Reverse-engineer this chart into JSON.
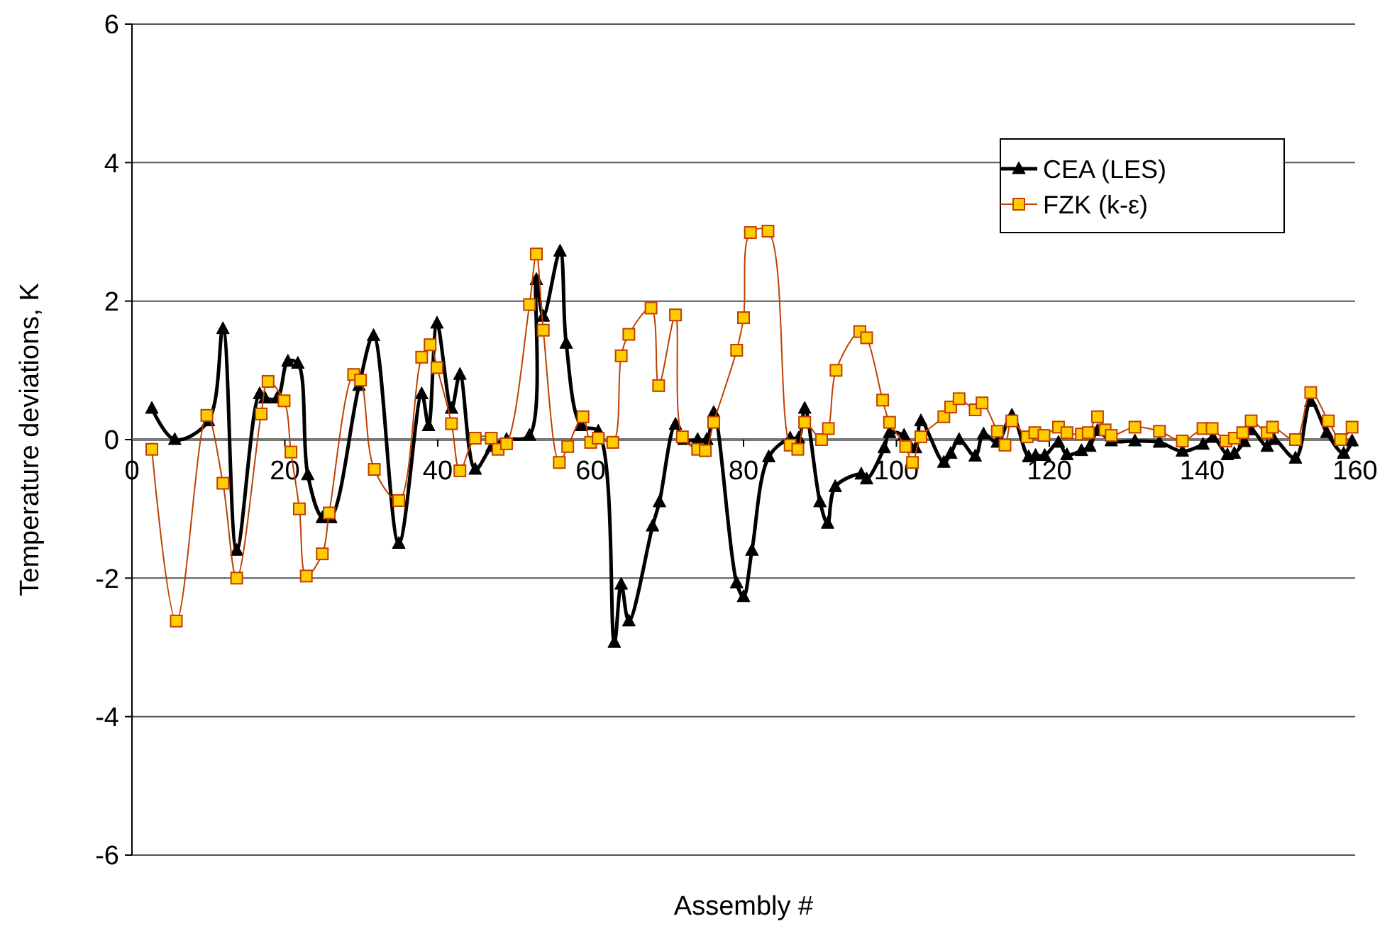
{
  "chart_data": {
    "type": "line",
    "xlabel": "Assembly #",
    "ylabel": "Temperature deviations, K",
    "xlim": [
      0,
      160
    ],
    "xticks": [
      0,
      20,
      40,
      60,
      80,
      100,
      120,
      140,
      160
    ],
    "ylim": [
      -6,
      6
    ],
    "yticks": [
      -6,
      -4,
      -2,
      0,
      2,
      4,
      6
    ],
    "grid": "y",
    "legend": "top right",
    "line_style": "solid",
    "series": [
      {
        "name": "CEA (LES)",
        "color": "#000000",
        "marker": "triangle",
        "x": [
          2.6,
          5.6,
          10,
          11.9,
          13.7,
          16.7,
          17.4,
          19,
          20.4,
          21.7,
          23,
          24.9,
          26,
          29.7,
          31.6,
          34.9,
          37.9,
          38.8,
          39.9,
          41.8,
          42.9,
          44.9,
          47.1,
          49,
          52,
          52.9,
          53.8,
          56,
          56.8,
          58.8,
          61,
          63.1,
          64,
          65,
          68.1,
          69,
          71.1,
          72.2,
          74,
          75.2,
          76.1,
          79.1,
          80,
          81.1,
          83.3,
          86.1,
          87.2,
          88,
          90,
          91,
          92,
          95.4,
          96.1,
          98.4,
          99.1,
          101,
          102.5,
          103.2,
          106.2,
          107.1,
          108.2,
          110.3,
          111.4,
          113.2,
          115.1,
          117.3,
          118.2,
          119.4,
          121.2,
          122.3,
          124.2,
          125.3,
          126.3,
          128.1,
          131.2,
          134.4,
          137.4,
          140.1,
          141.4,
          143.3,
          144.2,
          145.5,
          146.4,
          148.5,
          149.4,
          152.2,
          154.2,
          156.3,
          158.5,
          159.6
        ],
        "values": [
          0.45,
          0,
          0.27,
          1.6,
          -1.6,
          0.66,
          0.6,
          0.6,
          1.13,
          1.1,
          -0.51,
          -1.13,
          -1.13,
          0.78,
          1.5,
          -1.5,
          0.66,
          0.2,
          1.68,
          0.45,
          0.94,
          -0.43,
          -0.1,
          0,
          0.06,
          2.31,
          1.78,
          2.72,
          1.39,
          0.2,
          0.12,
          -2.93,
          -2.09,
          -2.62,
          -1.25,
          -0.9,
          0.22,
          0,
          0,
          0,
          0.39,
          -2.07,
          -2.27,
          -1.6,
          -0.25,
          0.02,
          0.02,
          0.45,
          -0.9,
          -1.21,
          -0.68,
          -0.5,
          -0.57,
          -0.12,
          0.1,
          0.06,
          -0.12,
          0.27,
          -0.33,
          -0.2,
          0,
          -0.24,
          0.08,
          -0.04,
          0.35,
          -0.25,
          -0.23,
          -0.23,
          -0.04,
          -0.22,
          -0.16,
          -0.1,
          0.13,
          -0.02,
          -0.02,
          -0.04,
          -0.17,
          -0.07,
          0.03,
          -0.22,
          -0.2,
          -0.03,
          0.14,
          -0.1,
          0,
          -0.27,
          0.55,
          0.1,
          -0.2,
          -0.02
        ]
      },
      {
        "name": "FZK (k-ε)",
        "color": "#c04000",
        "marker": "square",
        "x": [
          2.6,
          5.8,
          9.8,
          11.9,
          13.7,
          16.9,
          17.8,
          19.9,
          20.8,
          21.9,
          22.8,
          24.9,
          25.8,
          29,
          29.9,
          31.7,
          34.9,
          37.9,
          39,
          39.9,
          41.8,
          42.9,
          44.9,
          47,
          47.9,
          49,
          52,
          52.9,
          53.8,
          55.9,
          57,
          59,
          60,
          61,
          62.9,
          64,
          65,
          67.9,
          68.9,
          71.1,
          72,
          74,
          75,
          76.1,
          79.1,
          80,
          80.9,
          83.2,
          86.1,
          87.1,
          88,
          90.2,
          91.1,
          92.1,
          95.2,
          96.1,
          98.2,
          99.1,
          101.2,
          102.1,
          103.2,
          106.2,
          107.1,
          108.2,
          110.3,
          111.2,
          113.2,
          114.2,
          115.1,
          117.1,
          118.1,
          119.3,
          121.2,
          122.3,
          124.2,
          125.1,
          126.3,
          127.3,
          128.1,
          131.2,
          134.4,
          137.4,
          140.1,
          141.3,
          143.1,
          144.2,
          145.3,
          146.4,
          148.5,
          149.2,
          152.2,
          154.2,
          156.5,
          158.1,
          159.6
        ],
        "values": [
          -0.14,
          -2.62,
          0.35,
          -0.63,
          -2.0,
          0.37,
          0.84,
          0.56,
          -0.18,
          -1.0,
          -1.97,
          -1.65,
          -1.06,
          0.94,
          0.86,
          -0.43,
          -0.88,
          1.19,
          1.37,
          1.04,
          0.23,
          -0.45,
          0.02,
          0.02,
          -0.14,
          -0.06,
          1.95,
          2.68,
          1.58,
          -0.33,
          -0.1,
          0.33,
          -0.04,
          0.02,
          -0.04,
          1.21,
          1.52,
          1.9,
          0.78,
          1.8,
          0.04,
          -0.14,
          -0.16,
          0.25,
          1.29,
          1.76,
          2.99,
          3.01,
          -0.08,
          -0.14,
          0.25,
          0,
          0.16,
          1.0,
          1.56,
          1.47,
          0.57,
          0.25,
          -0.1,
          -0.33,
          0.04,
          0.33,
          0.47,
          0.59,
          0.43,
          0.53,
          0.12,
          -0.08,
          0.27,
          0.04,
          0.1,
          0.06,
          0.18,
          0.1,
          0.08,
          0.1,
          0.33,
          0.14,
          0.06,
          0.18,
          0.12,
          -0.02,
          0.16,
          0.16,
          -0.02,
          0.02,
          0.1,
          0.27,
          0.1,
          0.18,
          0,
          0.68,
          0.27,
          0,
          0.18
        ]
      }
    ]
  }
}
